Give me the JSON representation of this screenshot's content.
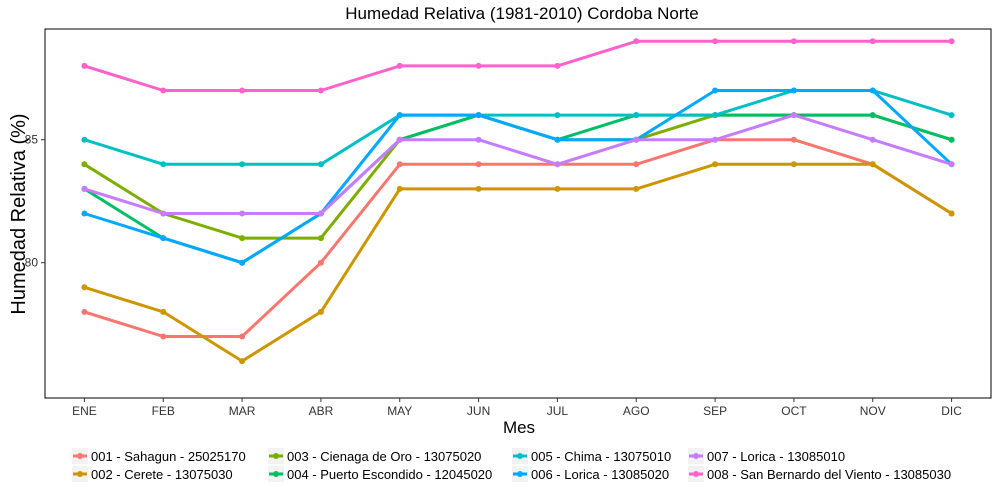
{
  "chart_data": {
    "type": "line",
    "title": "Humedad Relativa (1981-2010)  Cordoba Norte",
    "xlabel": "Mes",
    "ylabel": "Humedad Relativa  (%)",
    "categories": [
      "ENE",
      "FEB",
      "MAR",
      "ABR",
      "MAY",
      "JUN",
      "JUL",
      "AGO",
      "SEP",
      "OCT",
      "NOV",
      "DIC"
    ],
    "ylim": [
      74.5,
      89.5
    ],
    "yticks": [
      80,
      85
    ],
    "grid": false,
    "legend_position": "bottom",
    "series": [
      {
        "name": "001 - Sahagun - 25025170",
        "color": "#F8766D",
        "values": [
          78,
          77,
          77,
          80,
          84,
          84,
          84,
          84,
          85,
          85,
          84,
          82
        ]
      },
      {
        "name": "002 - Cerete - 13075030",
        "color": "#CD9600",
        "values": [
          79,
          78,
          76,
          78,
          83,
          83,
          83,
          83,
          84,
          84,
          84,
          82
        ]
      },
      {
        "name": "003 - Cienaga de Oro - 13075020",
        "color": "#7CAE00",
        "values": [
          84,
          82,
          81,
          81,
          85,
          86,
          85,
          85,
          86,
          86,
          86,
          85
        ]
      },
      {
        "name": "004 - Puerto Escondido - 12045020",
        "color": "#00BE67",
        "values": [
          83,
          81,
          80,
          82,
          85,
          86,
          85,
          86,
          86,
          86,
          86,
          85
        ]
      },
      {
        "name": "005 - Chima - 13075010",
        "color": "#00BFC4",
        "values": [
          85,
          84,
          84,
          84,
          86,
          86,
          86,
          86,
          86,
          87,
          87,
          86
        ]
      },
      {
        "name": "006 - Lorica - 13085020",
        "color": "#00A9FF",
        "values": [
          82,
          81,
          80,
          82,
          86,
          86,
          85,
          85,
          87,
          87,
          87,
          84
        ]
      },
      {
        "name": "007 - Lorica - 13085010",
        "color": "#C77CFF",
        "values": [
          83,
          82,
          82,
          82,
          85,
          85,
          84,
          85,
          85,
          86,
          85,
          84
        ]
      },
      {
        "name": "008 - San Bernardo del Viento - 13085030",
        "color": "#FF61CC",
        "values": [
          88,
          87,
          87,
          87,
          88,
          88,
          88,
          89,
          89,
          89,
          89,
          89
        ]
      }
    ]
  }
}
